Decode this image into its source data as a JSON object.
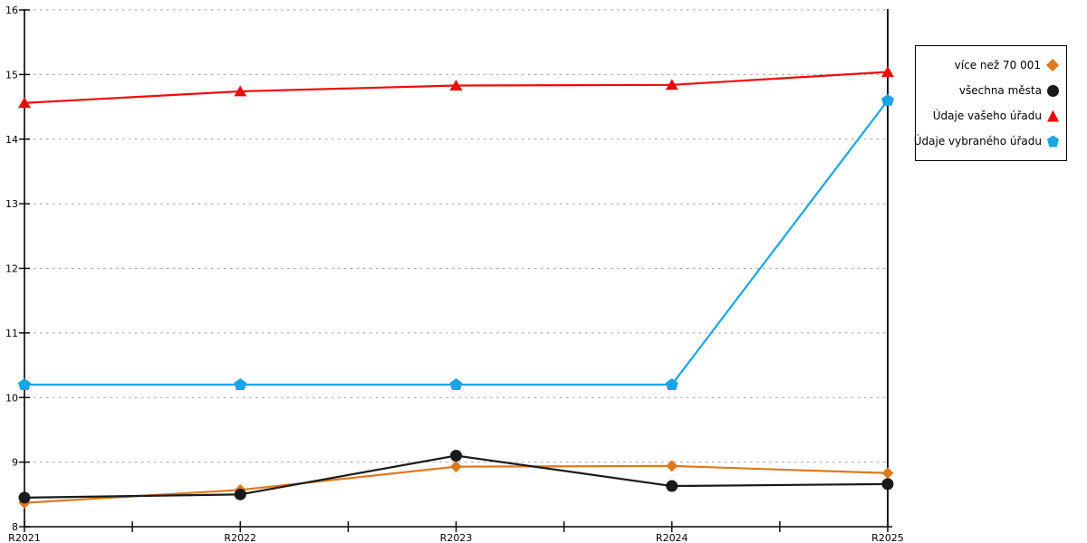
{
  "chart_data": {
    "type": "line",
    "title": "",
    "xlabel": "",
    "ylabel": "",
    "categories": [
      "R2021",
      "R2022",
      "R2023",
      "R2024",
      "R2025"
    ],
    "series": [
      {
        "name": "více než 70 001",
        "marker": "diamond",
        "color": "#DD7A1E",
        "values": [
          8.37,
          8.57,
          8.93,
          8.94,
          8.83
        ]
      },
      {
        "name": "všechna města",
        "marker": "circle",
        "color": "#1A1A1A",
        "values": [
          8.45,
          8.5,
          9.1,
          8.63,
          8.66
        ]
      },
      {
        "name": "Údaje vašeho úřadu",
        "marker": "triangle",
        "color": "#EE0B0B",
        "values": [
          14.56,
          14.74,
          14.83,
          14.84,
          15.04
        ]
      },
      {
        "name": "Údaje vybraného úřadu",
        "marker": "pentagon",
        "color": "#1BA6E3",
        "values": [
          10.2,
          10.2,
          10.2,
          10.2,
          14.6
        ]
      }
    ],
    "ylim": [
      8,
      16
    ],
    "y_ticks": [
      "8",
      "9",
      "10",
      "11",
      "12",
      "13",
      "14",
      "15",
      "16"
    ],
    "grid": "horizontal-dotted",
    "grid_color": "#9E9E9E",
    "axis_color": "#000000",
    "highlight_column": "R2025",
    "legend_position": "top-right-outside"
  }
}
